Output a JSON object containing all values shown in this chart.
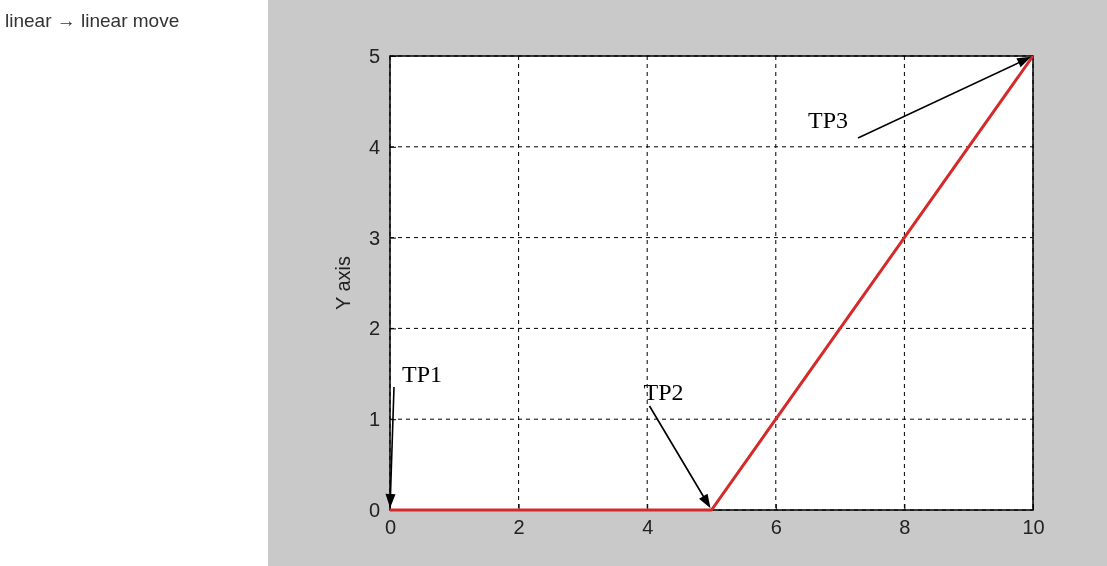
{
  "chart_data": {
    "type": "line",
    "title": "linear → linear move",
    "ylabel": "Y axis",
    "x": [
      0,
      5,
      10
    ],
    "series": [
      {
        "color": "#d42a2a",
        "values": [
          0,
          0,
          5
        ]
      }
    ],
    "xlim": [
      0,
      10
    ],
    "xticks": [
      0,
      2,
      4,
      6,
      8,
      10
    ],
    "ylim": [
      0,
      5
    ],
    "yticks": [
      0,
      1,
      2,
      3,
      4,
      5
    ],
    "grid": true,
    "marker": "none",
    "line_style": "solid",
    "annotations": [
      "TP1",
      "TP2",
      "TP3"
    ]
  }
}
